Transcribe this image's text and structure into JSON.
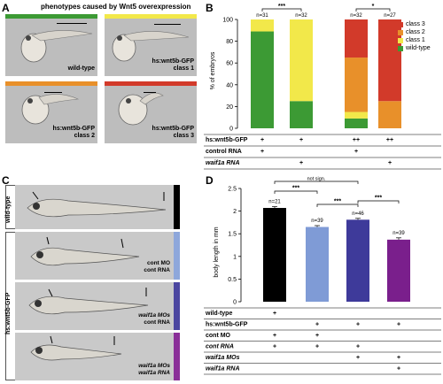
{
  "panelA": {
    "letter": "A",
    "title": "phenotypes caused by Wnt5 overexpression",
    "embryos": [
      {
        "label_line1": "wild-type",
        "label_line2": "",
        "color": "#3c9a34"
      },
      {
        "label_line1": "hs:wnt5b-GFP",
        "label_line2": "class 1",
        "color": "#f2e84a"
      },
      {
        "label_line1": "hs:wnt5b-GFP",
        "label_line2": "class 2",
        "color": "#e8902a"
      },
      {
        "label_line1": "hs:wnt5b-GFP",
        "label_line2": "class 3",
        "color": "#d23a2a"
      }
    ]
  },
  "panelB": {
    "letter": "B",
    "ylabel": "% of embryos",
    "yticks": [
      "0",
      "20",
      "40",
      "60",
      "80",
      "100"
    ],
    "sig": [
      "***",
      "*"
    ],
    "legend": [
      {
        "label": "class 3",
        "color": "#d23a2a"
      },
      {
        "label": "class 2",
        "color": "#e8902a"
      },
      {
        "label": "class 1",
        "color": "#f2e84a"
      },
      {
        "label": "wild-type",
        "color": "#3c9a34"
      }
    ],
    "table": [
      {
        "label": "hs:wnt5b-GFP",
        "cells": [
          "+",
          "+",
          "++",
          "++"
        ]
      },
      {
        "label": "control RNA",
        "cells": [
          "+",
          "",
          "+",
          ""
        ]
      },
      {
        "label": "waif1a RNA",
        "cells": [
          "",
          "+",
          "",
          "+"
        ]
      }
    ]
  },
  "chart_data": [
    {
      "type": "bar",
      "stacked": true,
      "ylabel": "% of embryos",
      "ylim": [
        0,
        100
      ],
      "categories": [
        "1",
        "2",
        "3",
        "4"
      ],
      "n_labels": [
        "n=31",
        "n=32",
        "n=32",
        "n=27"
      ],
      "series": [
        {
          "name": "wild-type",
          "values": [
            89,
            25,
            9,
            0
          ]
        },
        {
          "name": "class 1",
          "values": [
            11,
            75,
            6,
            0
          ]
        },
        {
          "name": "class 2",
          "values": [
            0,
            0,
            50,
            25
          ]
        },
        {
          "name": "class 3",
          "values": [
            0,
            0,
            35,
            75
          ]
        }
      ],
      "significance": [
        {
          "between": [
            0,
            1
          ],
          "label": "***"
        },
        {
          "between": [
            2,
            3
          ],
          "label": "*"
        }
      ]
    },
    {
      "type": "bar",
      "ylabel": "body length in mm",
      "ylim": [
        0,
        2.5
      ],
      "yticks": [
        "0",
        "0.5",
        "1",
        "1.5",
        "2",
        "2.5"
      ],
      "categories": [
        "1",
        "2",
        "3",
        "4"
      ],
      "values": [
        2.07,
        1.65,
        1.81,
        1.37
      ],
      "errors": [
        0.03,
        0.03,
        0.03,
        0.04
      ],
      "colors": [
        "#000000",
        "#7f9bd6",
        "#3e3a9a",
        "#7a1f8c"
      ],
      "n_labels": [
        "n=21",
        "n=39",
        "n=46",
        "n=39"
      ],
      "significance": [
        {
          "between": [
            0,
            2
          ],
          "label": "not sign."
        },
        {
          "between": [
            0,
            1
          ],
          "label": "***"
        },
        {
          "between": [
            1,
            2
          ],
          "label": "***"
        },
        {
          "between": [
            2,
            3
          ],
          "label": "***"
        }
      ]
    }
  ],
  "panelC": {
    "letter": "C",
    "group_labels": [
      "wild-type",
      "hs:wnt5b-GFP"
    ],
    "rows": [
      {
        "line1": "",
        "line2": "",
        "color": "#000000"
      },
      {
        "line1": "cont MO",
        "line2": "cont RNA",
        "color": "#8ea7db"
      },
      {
        "line1": "waif1a MOs",
        "line2": "cont RNA",
        "color": "#4b46a0"
      },
      {
        "line1": "waif1a MOs",
        "line2": "waif1a RNA",
        "color": "#8a2f98"
      }
    ]
  },
  "panelD": {
    "letter": "D",
    "ylabel": "body length in mm",
    "table": [
      {
        "label": "wild-type",
        "cells": [
          "+",
          "",
          "",
          ""
        ]
      },
      {
        "label": "hs:wnt5b-GFP",
        "cells": [
          "",
          "+",
          "+",
          "+"
        ]
      },
      {
        "label": "cont MO",
        "cells": [
          "+",
          "+",
          "",
          ""
        ]
      },
      {
        "label": "cont RNA",
        "cells": [
          "+",
          "+",
          "+",
          ""
        ]
      },
      {
        "label": "waif1a MOs",
        "cells": [
          "",
          "",
          "+",
          "+"
        ]
      },
      {
        "label": "waif1a RNA",
        "cells": [
          "",
          "",
          "",
          "+"
        ]
      }
    ]
  }
}
